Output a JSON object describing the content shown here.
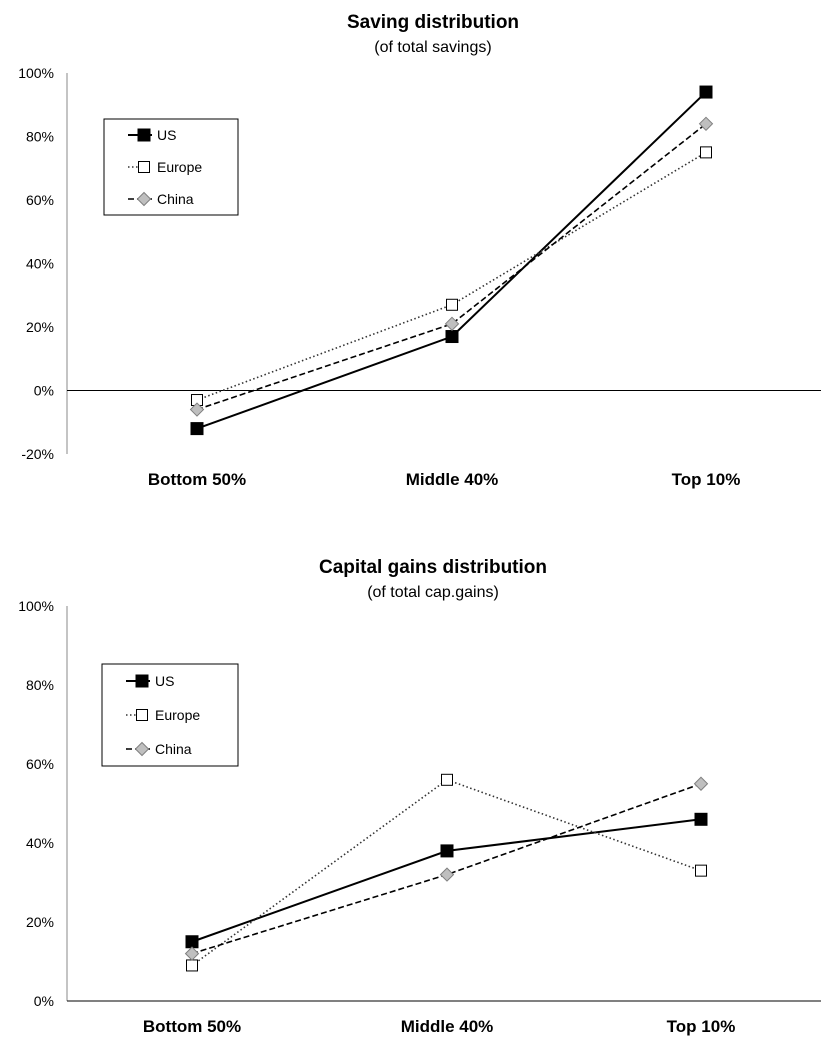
{
  "chart_data": [
    {
      "type": "line",
      "title": "Saving distribution",
      "subtitle": "(of total savings)",
      "categories": [
        "Bottom 50%",
        "Middle 40%",
        "Top 10%"
      ],
      "ylim": [
        -20,
        100
      ],
      "yticks": [
        -20,
        0,
        20,
        40,
        60,
        80,
        100
      ],
      "ytick_labels": [
        "-20%",
        "0%",
        "20%",
        "40%",
        "60%",
        "80%",
        "100%"
      ],
      "zero_line": true,
      "grid": false,
      "legend_position": "top-left",
      "series": [
        {
          "name": "US",
          "values": [
            -12,
            17,
            94
          ],
          "color": "#000000",
          "line": "solid",
          "marker": "square-filled"
        },
        {
          "name": "Europe",
          "values": [
            -3,
            27,
            75
          ],
          "color": "#333333",
          "line": "dotted",
          "marker": "square-open"
        },
        {
          "name": "China",
          "values": [
            -6,
            21,
            84
          ],
          "color": "#000000",
          "line": "dashed",
          "marker": "diamond-gray"
        }
      ]
    },
    {
      "type": "line",
      "title": "Capital gains distribution",
      "subtitle": "(of total cap.gains)",
      "categories": [
        "Bottom 50%",
        "Middle 40%",
        "Top 10%"
      ],
      "ylim": [
        0,
        100
      ],
      "yticks": [
        0,
        20,
        40,
        60,
        80,
        100
      ],
      "ytick_labels": [
        "0%",
        "20%",
        "40%",
        "60%",
        "80%",
        "100%"
      ],
      "zero_line": false,
      "grid": false,
      "legend_position": "top-left",
      "series": [
        {
          "name": "US",
          "values": [
            15,
            38,
            46
          ],
          "color": "#000000",
          "line": "solid",
          "marker": "square-filled"
        },
        {
          "name": "Europe",
          "values": [
            9,
            56,
            33
          ],
          "color": "#333333",
          "line": "dotted",
          "marker": "square-open"
        },
        {
          "name": "China",
          "values": [
            12,
            32,
            55
          ],
          "color": "#000000",
          "line": "dashed",
          "marker": "diamond-gray"
        }
      ]
    }
  ]
}
